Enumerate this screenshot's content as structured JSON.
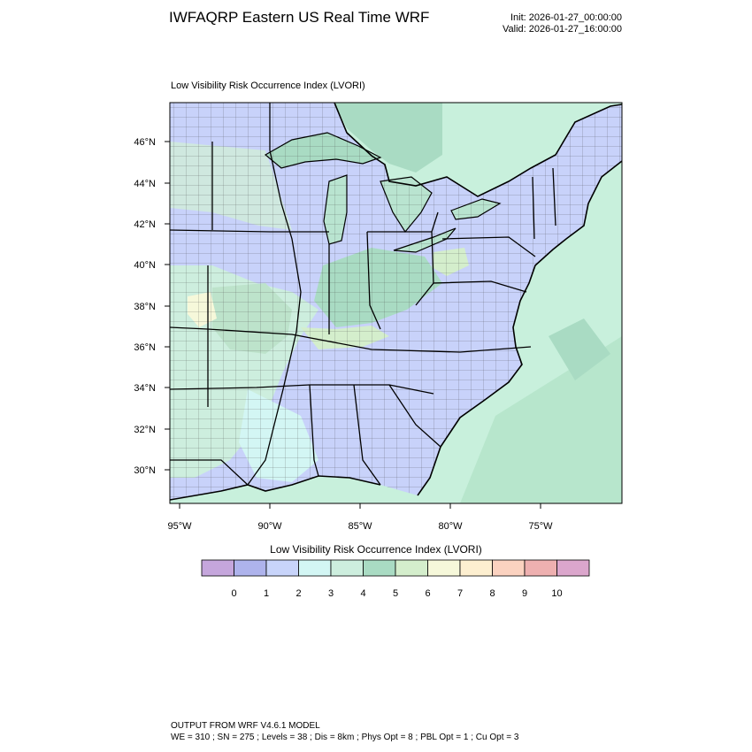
{
  "header": {
    "title": "IWFAQRP Eastern US Real Time WRF",
    "init": "Init: 2026-01-27_00:00:00",
    "valid": "Valid: 2026-01-27_16:00:00"
  },
  "map": {
    "subtitle": "Low Visibility Risk Occurrence Index   (LVORI)",
    "lat_ticks": [
      "46°N",
      "44°N",
      "42°N",
      "40°N",
      "38°N",
      "36°N",
      "34°N",
      "32°N",
      "30°N"
    ],
    "lon_ticks": [
      "95°W",
      "90°W",
      "85°W",
      "80°W",
      "75°W"
    ],
    "colors": {
      "land_low": "#c8d2fa",
      "water_canada": "#c8f0dc",
      "risk_3": "#cdeede",
      "risk_4": "#a9dbc3",
      "risk_6": "#d4eecc",
      "risk_7": "#f6f8da"
    }
  },
  "colorbar": {
    "title": "Low Visibility Risk Occurrence Index  (LVORI)",
    "colors": [
      "#c5a6dc",
      "#aeb3ec",
      "#c8d4fa",
      "#d3f6f4",
      "#cdeede",
      "#a9dbc3",
      "#d4eecc",
      "#f6f8da",
      "#fdefd0",
      "#fbd2c0",
      "#eeb0b0",
      "#dba6cc"
    ],
    "labels": [
      "0",
      "1",
      "2",
      "3",
      "4",
      "5",
      "6",
      "7",
      "8",
      "9",
      "10"
    ]
  },
  "footer": {
    "line1": "OUTPUT FROM WRF V4.6.1 MODEL",
    "line2": "WE = 310 ; SN = 275 ; Levels = 38 ; Dis = 8km ; Phys Opt = 8 ; PBL Opt = 1 ; Cu Opt = 3"
  }
}
